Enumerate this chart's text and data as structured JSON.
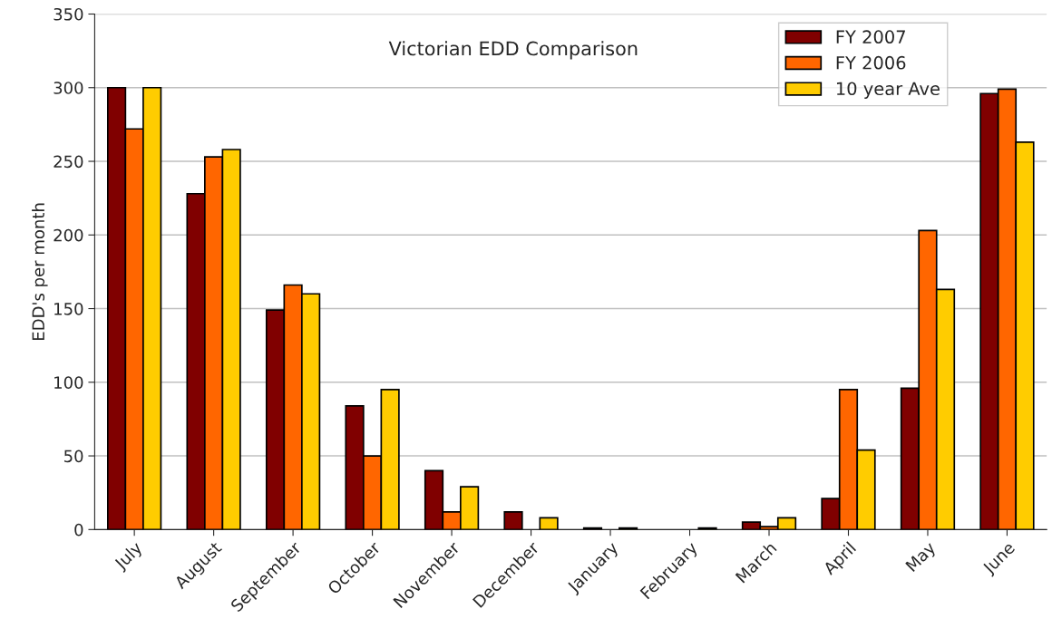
{
  "chart_data": {
    "type": "bar",
    "title": "Victorian EDD Comparison",
    "ylabel": "EDD's per month",
    "categories": [
      "July",
      "August",
      "September",
      "October",
      "November",
      "December",
      "January",
      "February",
      "March",
      "April",
      "May",
      "June"
    ],
    "series": [
      {
        "name": "FY 2007",
        "color": "#800000",
        "values": [
          300,
          228,
          149,
          84,
          40,
          12,
          1,
          null,
          5,
          21,
          96,
          296
        ]
      },
      {
        "name": "FY 2006",
        "color": "#ff6600",
        "values": [
          272,
          253,
          166,
          50,
          12,
          null,
          null,
          null,
          2,
          95,
          203,
          299
        ]
      },
      {
        "name": "10 year Ave",
        "color": "#ffcc00",
        "values": [
          300,
          258,
          160,
          95,
          29,
          8,
          1,
          1,
          8,
          54,
          163,
          263
        ]
      }
    ],
    "ylim": [
      0,
      350
    ],
    "yticks": [
      0,
      50,
      100,
      150,
      200,
      250,
      300,
      350
    ],
    "grid": "y",
    "legend": "top right"
  }
}
